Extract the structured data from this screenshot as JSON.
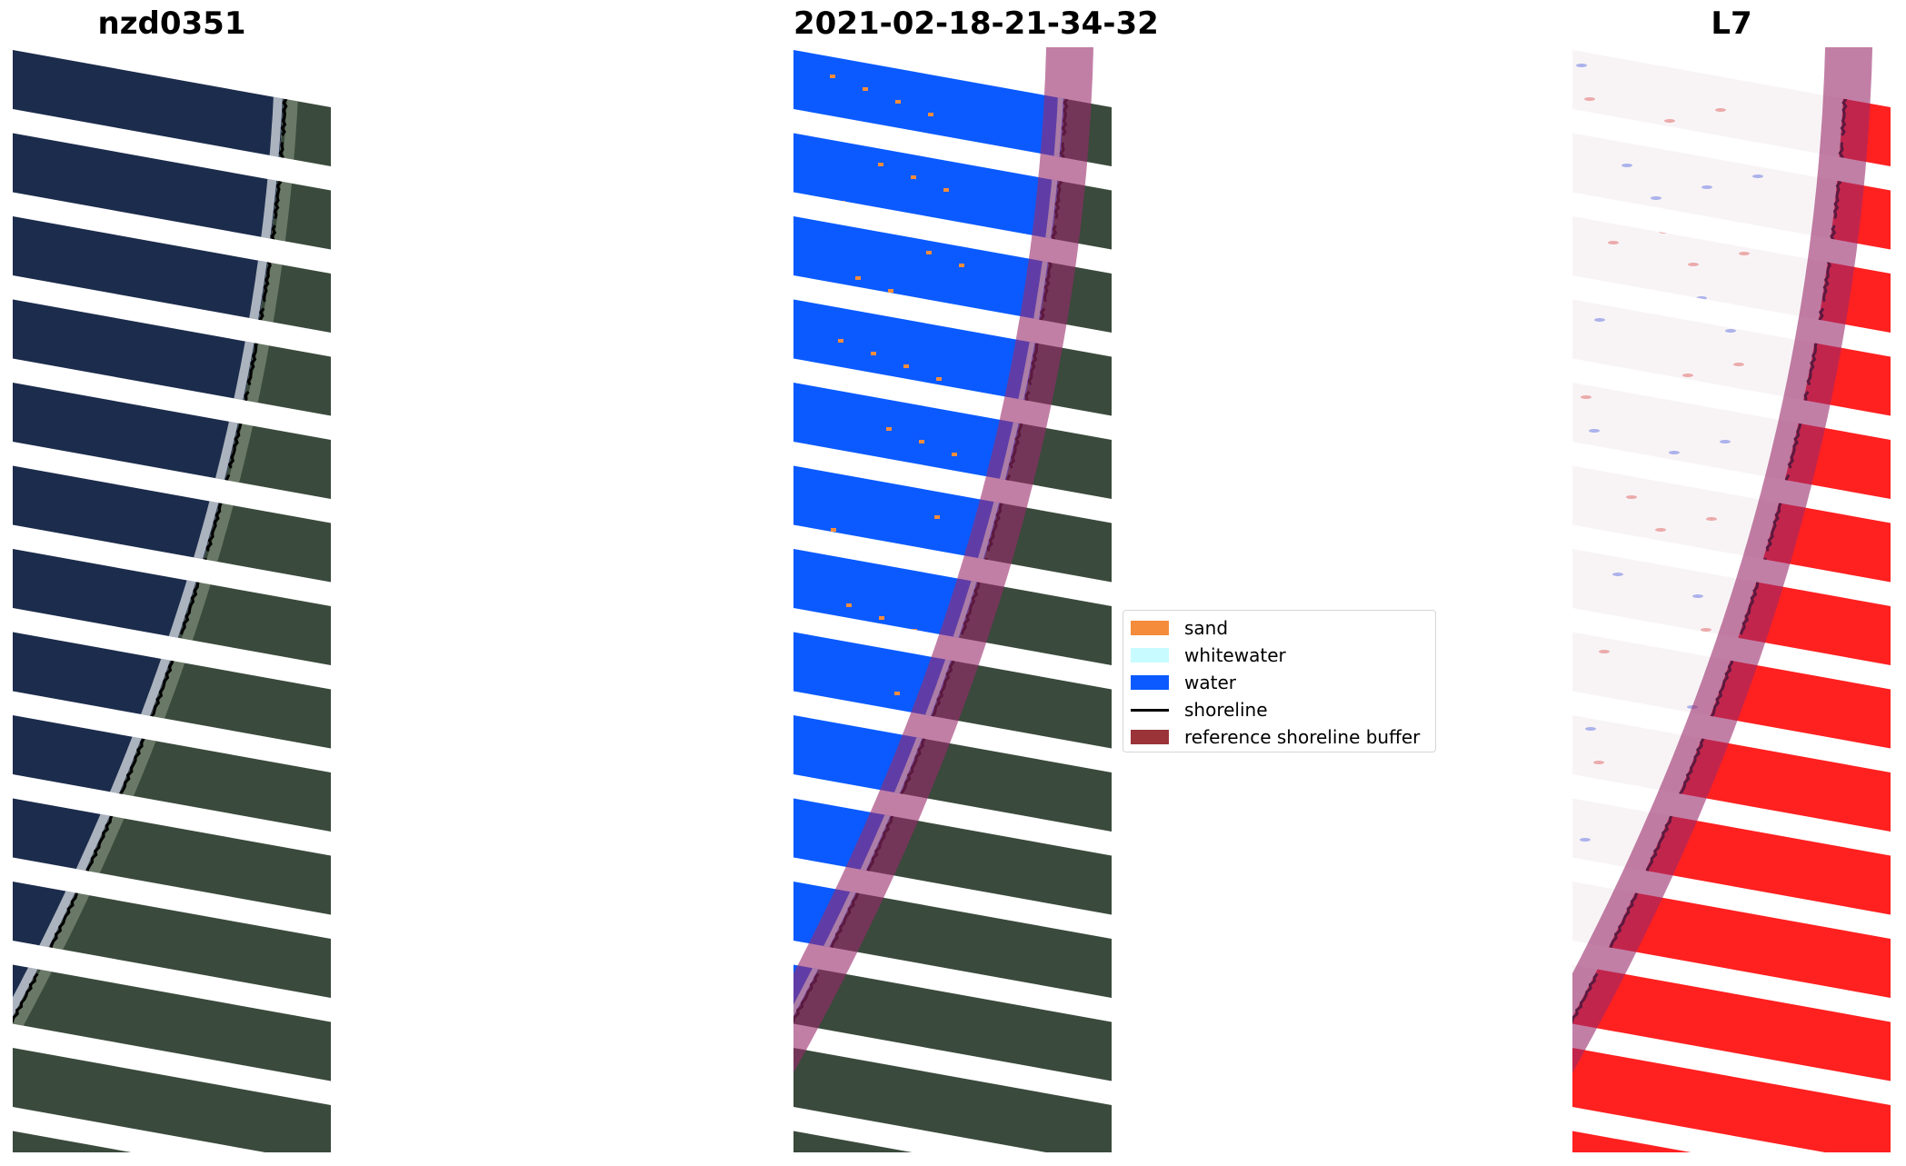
{
  "panels": [
    {
      "title": "nzd0351"
    },
    {
      "title": "2021-02-18-21-34-32"
    },
    {
      "title": "L7"
    }
  ],
  "legend": {
    "items": [
      {
        "label": "sand",
        "kind": "patch",
        "color": "#f58c3c"
      },
      {
        "label": "whitewater",
        "kind": "patch",
        "color": "#c8fbff"
      },
      {
        "label": "water",
        "kind": "patch",
        "color": "#0a5aff"
      },
      {
        "label": "shoreline",
        "kind": "line",
        "color": "#000000"
      },
      {
        "label": "reference shoreline buffer",
        "kind": "patch",
        "color": "#9a3438"
      }
    ]
  },
  "colors": {
    "rgb_ocean": "#1c2c4c",
    "rgb_land": "#3a4a3c",
    "water": "#0a5aff",
    "whitewater": "#c8fbff",
    "sand": "#f58c3c",
    "buffer_overlay": "#9a2a6a",
    "index_land": "#ff2020"
  }
}
